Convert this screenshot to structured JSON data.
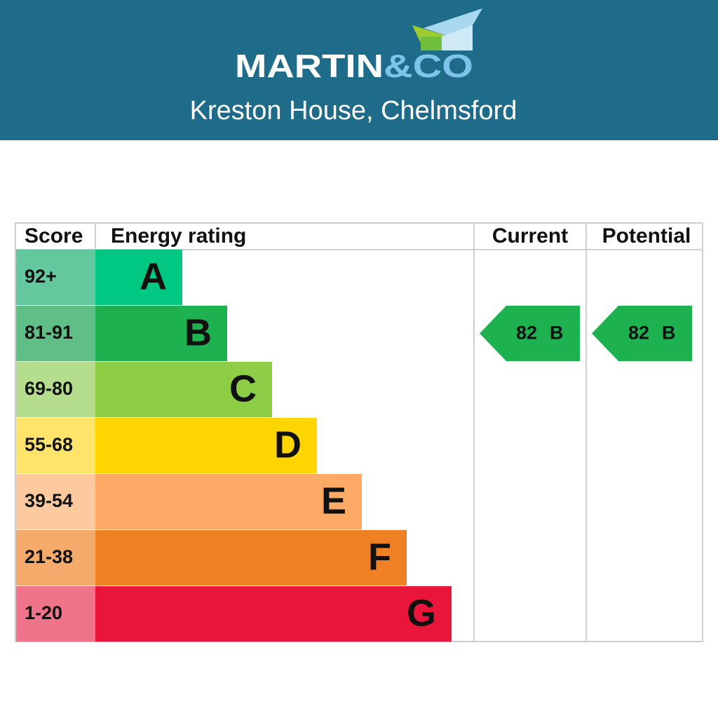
{
  "header": {
    "brand_main": "MARTIN",
    "brand_accent": "&CO",
    "subtitle": "Kreston House, Chelmsford"
  },
  "table": {
    "columns": [
      "Score",
      "Energy rating",
      "Current",
      "Potential"
    ],
    "bands": [
      {
        "score": "92+",
        "letter": "A",
        "color": "#00c781",
        "score_color": "#63c89e"
      },
      {
        "score": "81-91",
        "letter": "B",
        "color": "#1db150",
        "score_color": "#5fbf87"
      },
      {
        "score": "69-80",
        "letter": "C",
        "color": "#8dce46",
        "score_color": "#b4de8d"
      },
      {
        "score": "55-68",
        "letter": "D",
        "color": "#ffd500",
        "score_color": "#ffe46c"
      },
      {
        "score": "39-54",
        "letter": "E",
        "color": "#fcaa65",
        "score_color": "#fdcaa0"
      },
      {
        "score": "21-38",
        "letter": "F",
        "color": "#ef8023",
        "score_color": "#f4aa6b"
      },
      {
        "score": "1-20",
        "letter": "G",
        "color": "#e9153b",
        "score_color": "#ef7389"
      }
    ],
    "current": {
      "value": 82,
      "letter": "B"
    },
    "potential": {
      "value": 82,
      "letter": "B"
    }
  }
}
